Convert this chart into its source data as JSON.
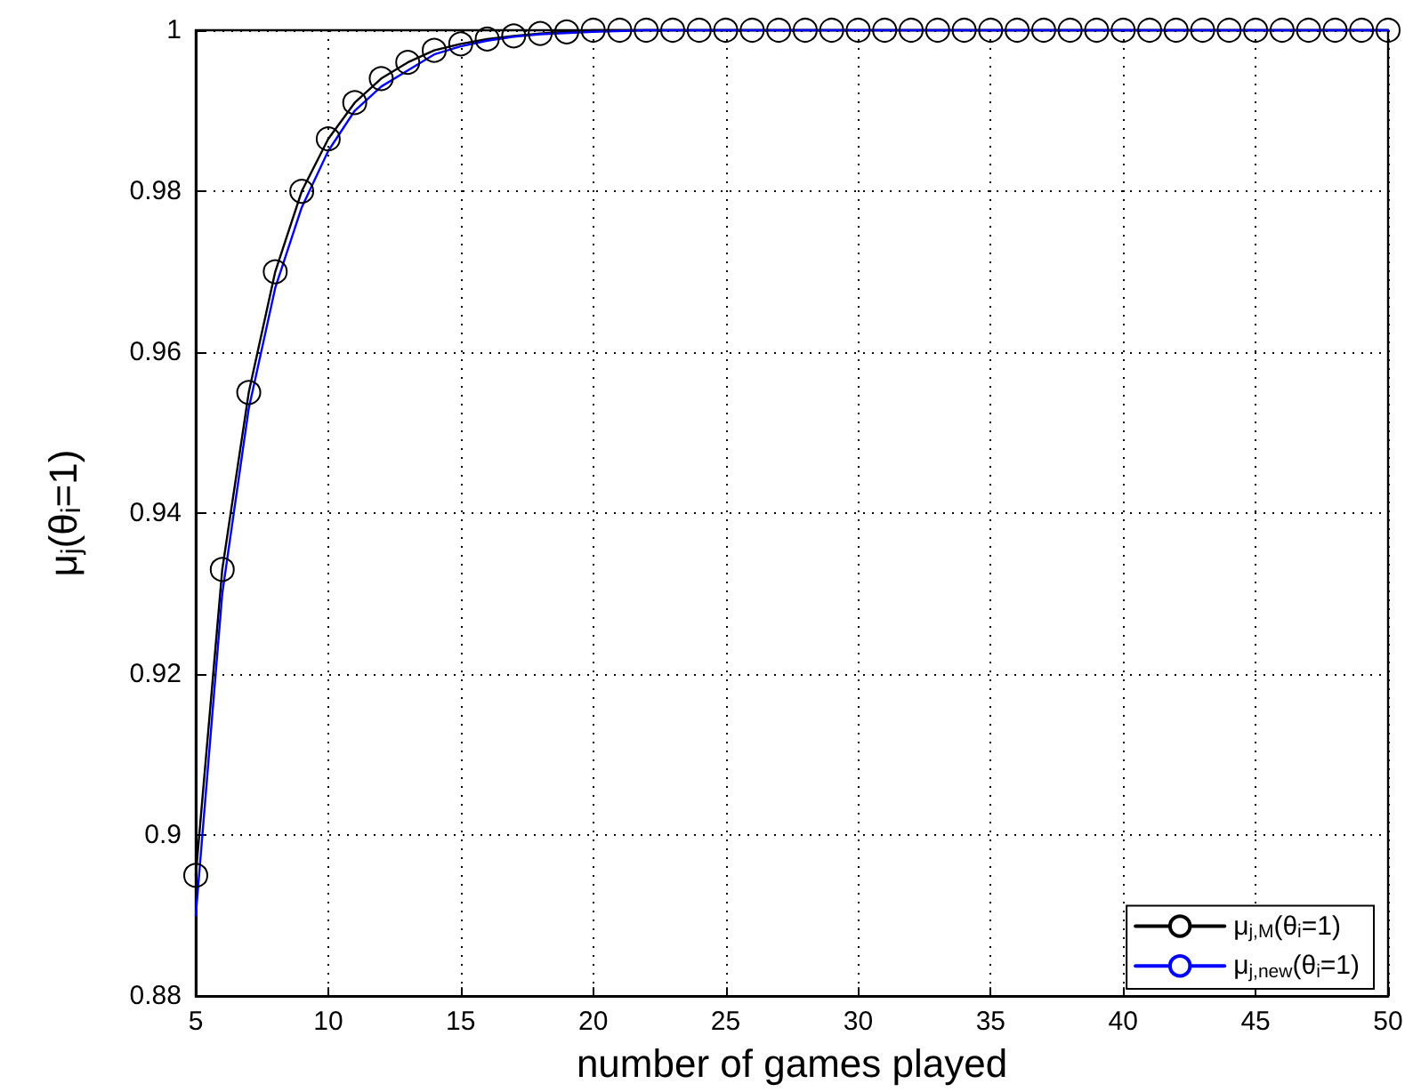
{
  "chart_data": {
    "type": "line",
    "xlabel": "number of games played",
    "ylabel": "μ$_{j}$(θ$_{i}$=1)",
    "xlim": [
      5,
      50
    ],
    "xticks": [
      5,
      10,
      15,
      20,
      25,
      30,
      35,
      40,
      45,
      50
    ],
    "ylim": [
      0.88,
      1
    ],
    "yticks": [
      0.88,
      0.9,
      0.92,
      0.94,
      0.96,
      0.98,
      1
    ],
    "grid": true,
    "legend": "bottom right",
    "line_style": "solid",
    "series": [
      {
        "name": "μ$_{j,M}$(θ$_{i}$=1)",
        "color": "#000000",
        "marker": "circle",
        "x": [
          5,
          6,
          7,
          8,
          9,
          10,
          11,
          12,
          13,
          14,
          15,
          16,
          17,
          18,
          19,
          20,
          21,
          22,
          23,
          24,
          25,
          26,
          27,
          28,
          29,
          30,
          31,
          32,
          33,
          34,
          35,
          36,
          37,
          38,
          39,
          40,
          41,
          42,
          43,
          44,
          45,
          46,
          47,
          48,
          49,
          50
        ],
        "values": [
          0.895,
          0.933,
          0.955,
          0.97,
          0.98,
          0.9865,
          0.991,
          0.994,
          0.996,
          0.9975,
          0.9983,
          0.9989,
          0.9993,
          0.9996,
          0.9998,
          1,
          1,
          1,
          1,
          1,
          1,
          1,
          1,
          1,
          1,
          1,
          1,
          1,
          1,
          1,
          1,
          1,
          1,
          1,
          1,
          1,
          1,
          1,
          1,
          1,
          1,
          1,
          1,
          1,
          1,
          1
        ]
      },
      {
        "name": "μ$_{j,new}$(θ$_{i}$=1)",
        "color": "#0000ff",
        "marker": "none",
        "x": [
          5,
          6,
          7,
          8,
          9,
          10,
          11,
          12,
          13,
          14,
          15,
          16,
          17,
          18,
          20,
          22,
          50
        ],
        "values": [
          0.89,
          0.93,
          0.953,
          0.968,
          0.978,
          0.985,
          0.99,
          0.993,
          0.995,
          0.997,
          0.998,
          0.9987,
          0.9992,
          0.9995,
          0.9998,
          1,
          1
        ]
      }
    ]
  }
}
